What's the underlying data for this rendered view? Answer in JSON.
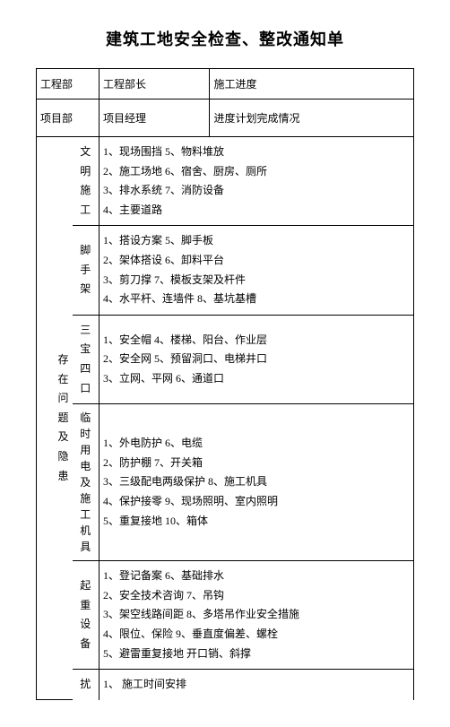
{
  "title": "建筑工地安全检查、整改通知单",
  "header": {
    "r1c1": "工程部",
    "r1c2": "工程部长",
    "r1c3": "施工进度",
    "r2c1": "项目部",
    "r2c2": "项目经理",
    "r2c3": "进度计划完成情况"
  },
  "main_label": "存在问题及隐患",
  "sections": {
    "s1": {
      "label": "文明施工",
      "items": [
        "1、现场围挡 5、物料堆放",
        "2、施工场地 6、宿舍、厨房、厕所",
        "3、排水系统 7、消防设备",
        "4、主要道路"
      ]
    },
    "s2": {
      "label": "脚手架",
      "items": [
        "1、搭设方案 5、脚手板",
        "2、架体搭设 6、卸料平台",
        "3、剪刀撑 7、模板支架及杆件",
        "4、水平杆、连墙件 8、基坑基槽"
      ]
    },
    "s3": {
      "label": "三宝四口",
      "items": [
        "1、安全帽 4、楼梯、阳台、作业层",
        "2、安全网 5、预留洞口、电梯井口",
        "3、立网、平网 6、通道口"
      ]
    },
    "s4": {
      "label": "临时用电及施工机具",
      "items": [
        "1、外电防护 6、电缆",
        "2、防护棚 7、开关箱",
        "3、三级配电两级保护 8、施工机具",
        "4、保护接零 9、现场照明、室内照明",
        "5、重复接地 10、箱体"
      ]
    },
    "s5": {
      "label": "起重设备",
      "items": [
        "1、登记备案 6、基础排水",
        "2、安全技术咨询 7、吊钩",
        "3、架空线路间距 8、多塔吊作业安全措施",
        "4、限位、保险 9、垂直度偏差、螺栓",
        "5、避雷重复接地 开口销、斜撑"
      ]
    },
    "s6": {
      "label": "扰",
      "items": [
        "1、 施工时间安排"
      ]
    }
  }
}
